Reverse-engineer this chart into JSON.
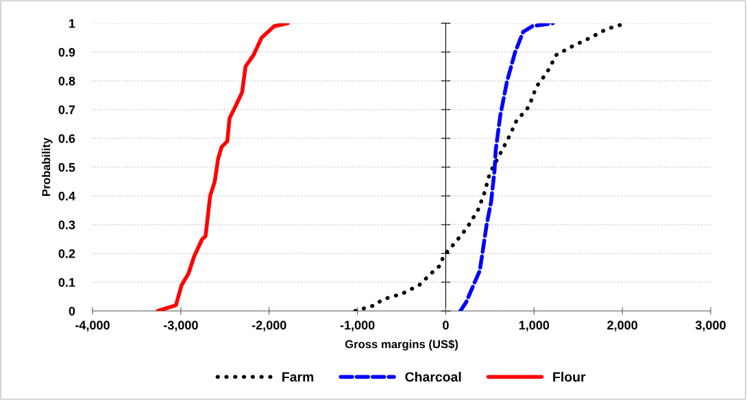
{
  "chart_data": {
    "type": "line",
    "xlabel": "Gross margins (US$)",
    "ylabel": "Probability",
    "xlim": [
      -4000,
      3000
    ],
    "ylim": [
      0,
      1
    ],
    "xticks": [
      {
        "value": -4000,
        "label": "-4,000"
      },
      {
        "value": -3000,
        "label": "-3,000"
      },
      {
        "value": -2000,
        "label": "-2,000"
      },
      {
        "value": -1000,
        "label": "-1,000"
      },
      0,
      {
        "value": 1000,
        "label": "1,000"
      },
      {
        "value": 2000,
        "label": "2,000"
      },
      {
        "value": 3000,
        "label": "3,000"
      }
    ],
    "yticks": [
      0,
      0.1,
      0.2,
      0.3,
      0.4,
      0.5,
      0.6,
      0.7,
      0.8,
      0.9,
      1
    ],
    "grid": "y",
    "legend": "bottom",
    "series": [
      {
        "name": "Farm",
        "color": "#000000",
        "line_style": "dotted",
        "x": [
          -1025,
          -805,
          -715,
          -494,
          -300,
          -133,
          -55,
          -29,
          113,
          243,
          364,
          437,
          501,
          605,
          708,
          799,
          941,
          1027,
          1148,
          1252,
          1433,
          1640,
          1821,
          2040
        ],
        "values": [
          0,
          0.02,
          0.04,
          0.06,
          0.09,
          0.14,
          0.16,
          0.19,
          0.24,
          0.29,
          0.35,
          0.41,
          0.48,
          0.54,
          0.6,
          0.66,
          0.71,
          0.78,
          0.83,
          0.89,
          0.92,
          0.95,
          0.98,
          1
        ]
      },
      {
        "name": "Charcoal",
        "color": "#0000ff",
        "line_style": "dashed",
        "x": [
          165,
          230,
          385,
          410,
          463,
          514,
          553,
          566,
          618,
          695,
          786,
          876,
          980,
          1213
        ],
        "values": [
          0,
          0.03,
          0.14,
          0.19,
          0.3,
          0.38,
          0.49,
          0.56,
          0.68,
          0.8,
          0.9,
          0.97,
          0.99,
          1
        ]
      },
      {
        "name": "Flour",
        "color": "#ff0000",
        "line_style": "solid",
        "x": [
          -3262,
          -3055,
          -2991,
          -2913,
          -2849,
          -2758,
          -2720,
          -2668,
          -2616,
          -2577,
          -2538,
          -2474,
          -2448,
          -2383,
          -2306,
          -2267,
          -2176,
          -2085,
          -1943,
          -1788
        ],
        "values": [
          0,
          0.02,
          0.09,
          0.13,
          0.19,
          0.25,
          0.26,
          0.4,
          0.45,
          0.53,
          0.57,
          0.59,
          0.67,
          0.71,
          0.76,
          0.85,
          0.89,
          0.95,
          0.99,
          1
        ]
      }
    ]
  }
}
